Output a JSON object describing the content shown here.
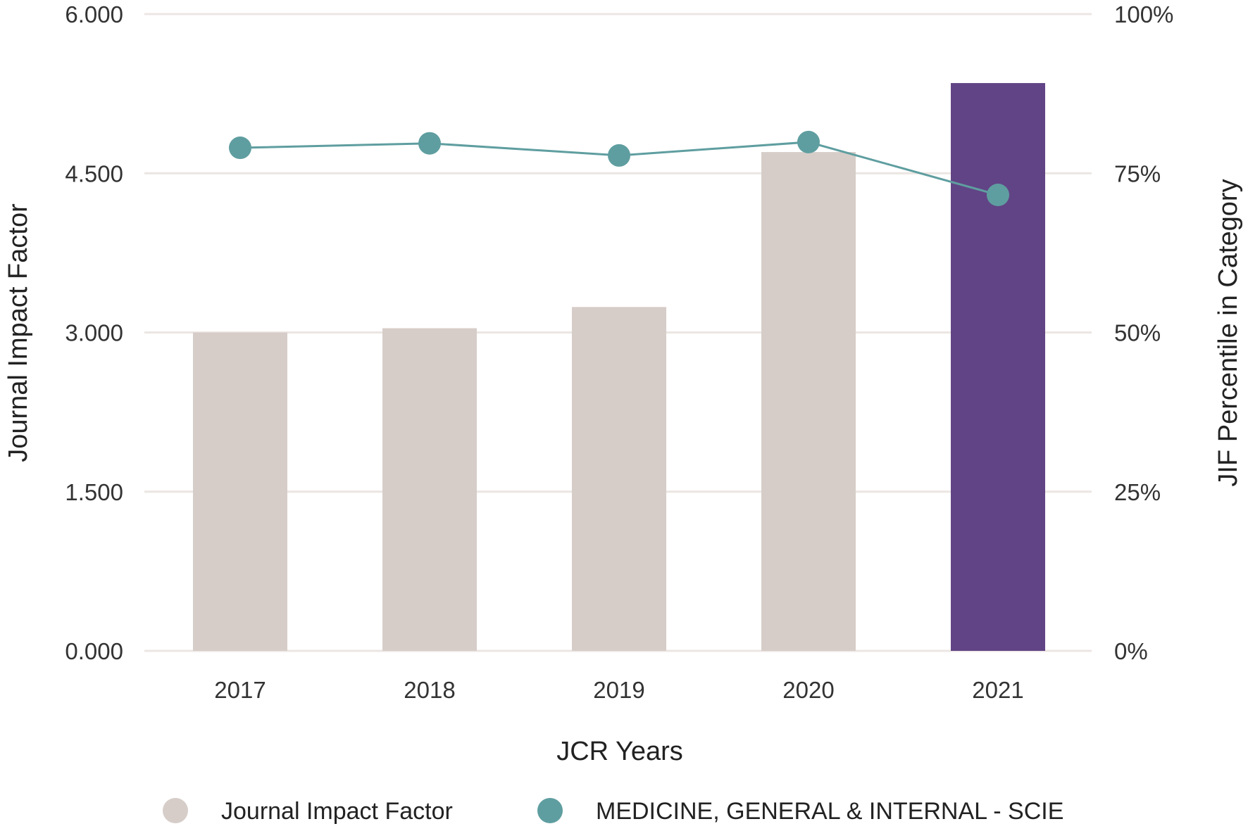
{
  "chart_data": {
    "type": "bar",
    "categories": [
      "2017",
      "2018",
      "2019",
      "2020",
      "2021"
    ],
    "series": [
      {
        "name": "Journal Impact Factor",
        "kind": "bar",
        "axis": "left",
        "values": [
          3.0,
          3.04,
          3.24,
          4.7,
          5.35
        ],
        "colors": [
          "#d6cdc9",
          "#d6cdc9",
          "#d6cdc9",
          "#d6cdc9",
          "#614485"
        ]
      },
      {
        "name": "MEDICINE, GENERAL & INTERNAL - SCIE",
        "kind": "line",
        "axis": "right",
        "values": [
          79,
          79.7,
          77.8,
          79.9,
          71.6
        ],
        "color": "#5f9ea0"
      }
    ],
    "xlabel": "JCR Years",
    "ylabel": "Journal Impact Factor",
    "y2label": "JIF Percentile in Category",
    "ylim": [
      0,
      6
    ],
    "y2lim": [
      0,
      100
    ],
    "yticks": [
      "0.000",
      "1.500",
      "3.000",
      "4.500",
      "6.000"
    ],
    "y2ticks": [
      "0%",
      "25%",
      "50%",
      "75%",
      "100%"
    ],
    "grid": true,
    "legend_position": "bottom",
    "legend_colors": [
      "#d6cdc9",
      "#5f9ea0"
    ]
  }
}
